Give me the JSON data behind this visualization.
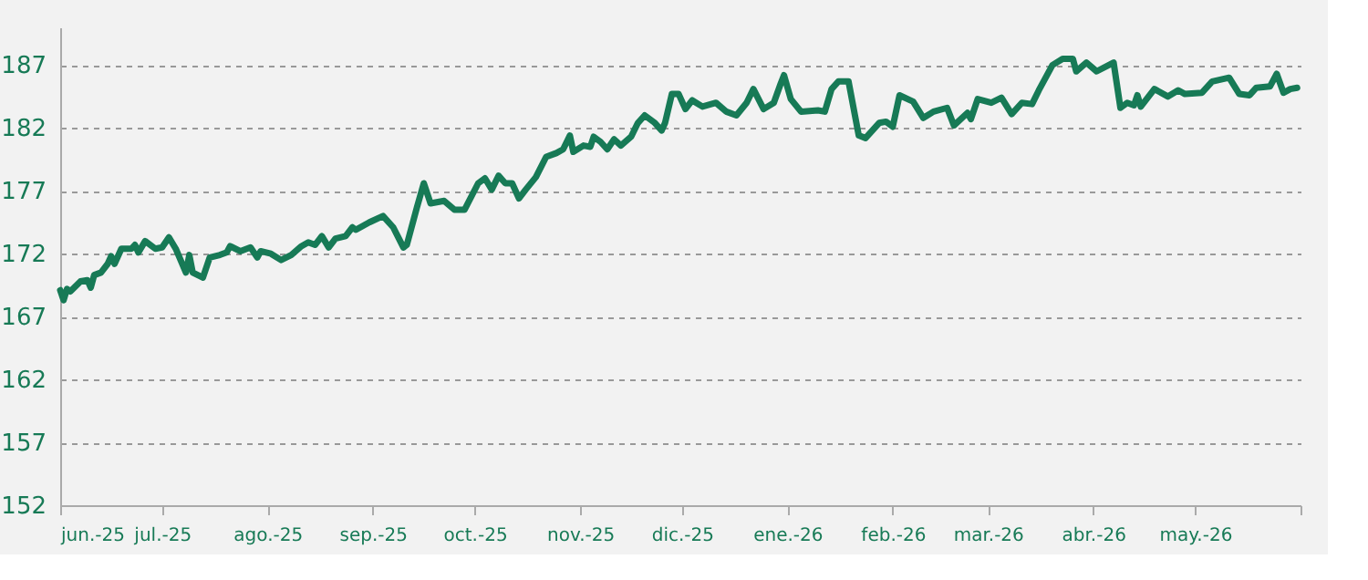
{
  "chart_data": {
    "type": "line",
    "xlim": [
      "2025-06-01",
      "2026-06-01"
    ],
    "ylim": [
      152,
      190
    ],
    "yticks": [
      152,
      157,
      162,
      167,
      172,
      177,
      182,
      187
    ],
    "xticks": [
      {
        "value": "2025-06-01",
        "label": "jun.-25"
      },
      {
        "value": "2025-07-01",
        "label": "jul.-25"
      },
      {
        "value": "2025-08-01",
        "label": "ago.-25"
      },
      {
        "value": "2025-09-01",
        "label": "sep.-25"
      },
      {
        "value": "2025-10-01",
        "label": "oct.-25"
      },
      {
        "value": "2025-11-01",
        "label": "nov.-25"
      },
      {
        "value": "2025-12-01",
        "label": "dic.-25"
      },
      {
        "value": "2026-01-01",
        "label": "ene.-26"
      },
      {
        "value": "2026-02-01",
        "label": "feb.-26"
      },
      {
        "value": "2026-03-01",
        "label": "mar.-26"
      },
      {
        "value": "2026-04-01",
        "label": "abr.-26"
      },
      {
        "value": "2026-05-01",
        "label": "may.-26"
      },
      {
        "value": "2026-06-01",
        "label": null
      }
    ],
    "grid": "y",
    "legend": false,
    "marker": "none",
    "line_style": "solid",
    "x": [
      "2025-06-01",
      "2025-06-02",
      "2025-06-03",
      "2025-06-04",
      "2025-06-07",
      "2025-06-09",
      "2025-06-10",
      "2025-06-11",
      "2025-06-13",
      "2025-06-15",
      "2025-06-16",
      "2025-06-17",
      "2025-06-19",
      "2025-06-22",
      "2025-06-23",
      "2025-06-24",
      "2025-06-26",
      "2025-06-29",
      "2025-07-01",
      "2025-07-03",
      "2025-07-05",
      "2025-07-08",
      "2025-07-09",
      "2025-07-10",
      "2025-07-13",
      "2025-07-15",
      "2025-07-18",
      "2025-07-20",
      "2025-07-21",
      "2025-07-24",
      "2025-07-27",
      "2025-07-29",
      "2025-07-30",
      "2025-08-02",
      "2025-08-05",
      "2025-08-08",
      "2025-08-11",
      "2025-08-13",
      "2025-08-15",
      "2025-08-17",
      "2025-08-19",
      "2025-08-21",
      "2025-08-24",
      "2025-08-26",
      "2025-08-27",
      "2025-08-31",
      "2025-09-04",
      "2025-09-07",
      "2025-09-10",
      "2025-09-11",
      "2025-09-14",
      "2025-09-16",
      "2025-09-18",
      "2025-09-22",
      "2025-09-25",
      "2025-09-28",
      "2025-10-02",
      "2025-10-04",
      "2025-10-06",
      "2025-10-08",
      "2025-10-10",
      "2025-10-12",
      "2025-10-14",
      "2025-10-16",
      "2025-10-19",
      "2025-10-22",
      "2025-10-25",
      "2025-10-27",
      "2025-10-29",
      "2025-10-30",
      "2025-11-02",
      "2025-11-04",
      "2025-11-05",
      "2025-11-07",
      "2025-11-09",
      "2025-11-11",
      "2025-11-13",
      "2025-11-16",
      "2025-11-18",
      "2025-11-20",
      "2025-11-23",
      "2025-11-25",
      "2025-11-26",
      "2025-11-28",
      "2025-11-30",
      "2025-12-02",
      "2025-12-04",
      "2025-12-07",
      "2025-12-11",
      "2025-12-14",
      "2025-12-17",
      "2025-12-20",
      "2025-12-22",
      "2025-12-25",
      "2025-12-28",
      "2025-12-30",
      "2025-12-31",
      "2026-01-02",
      "2026-01-05",
      "2026-01-10",
      "2026-01-12",
      "2026-01-14",
      "2026-01-16",
      "2026-01-19",
      "2026-01-22",
      "2026-01-24",
      "2026-01-26",
      "2026-01-28",
      "2026-01-30",
      "2026-02-01",
      "2026-02-03",
      "2026-02-07",
      "2026-02-10",
      "2026-02-13",
      "2026-02-17",
      "2026-02-19",
      "2026-02-23",
      "2026-02-24",
      "2026-02-26",
      "2026-03-02",
      "2026-03-05",
      "2026-03-08",
      "2026-03-11",
      "2026-03-14",
      "2026-03-16",
      "2026-03-20",
      "2026-03-23",
      "2026-03-26",
      "2026-03-27",
      "2026-03-30",
      "2026-04-02",
      "2026-04-07",
      "2026-04-09",
      "2026-04-11",
      "2026-04-13",
      "2026-04-14",
      "2026-04-15",
      "2026-04-19",
      "2026-04-23",
      "2026-04-26",
      "2026-04-28",
      "2026-05-03",
      "2026-05-06",
      "2026-05-11",
      "2026-05-14",
      "2026-05-17",
      "2026-05-19",
      "2026-05-23",
      "2026-05-25",
      "2026-05-27",
      "2026-05-29",
      "2026-05-31"
    ],
    "series": [
      {
        "color": "#177a56",
        "values": [
          169.1,
          168.3,
          169.2,
          169.0,
          169.8,
          169.9,
          169.3,
          170.3,
          170.5,
          171.2,
          171.8,
          171.2,
          172.4,
          172.4,
          172.7,
          172.1,
          173.0,
          172.4,
          172.5,
          173.3,
          172.4,
          170.5,
          171.9,
          170.5,
          170.1,
          171.7,
          171.9,
          172.1,
          172.6,
          172.2,
          172.5,
          171.7,
          172.2,
          172.0,
          171.5,
          171.9,
          172.6,
          172.9,
          172.7,
          173.4,
          172.5,
          173.2,
          173.4,
          174.1,
          173.9,
          174.5,
          175.0,
          174.1,
          172.5,
          172.7,
          175.7,
          177.6,
          176.0,
          176.2,
          175.5,
          175.5,
          177.6,
          178.0,
          177.1,
          178.2,
          177.6,
          177.6,
          176.4,
          177.1,
          178.1,
          179.7,
          180.0,
          180.3,
          181.4,
          180.1,
          180.6,
          180.5,
          181.3,
          180.9,
          180.3,
          181.1,
          180.6,
          181.3,
          182.4,
          183.0,
          182.4,
          181.8,
          182.4,
          184.7,
          184.7,
          183.5,
          184.2,
          183.7,
          184.0,
          183.3,
          183.0,
          184.0,
          185.1,
          183.5,
          184.0,
          185.5,
          186.2,
          184.3,
          183.3,
          183.4,
          183.3,
          185.1,
          185.7,
          185.7,
          181.4,
          181.2,
          181.8,
          182.4,
          182.5,
          182.1,
          184.6,
          184.1,
          182.8,
          183.3,
          183.6,
          182.2,
          183.2,
          182.7,
          184.3,
          184.0,
          184.4,
          183.1,
          184.0,
          183.9,
          185.0,
          187.0,
          187.5,
          187.5,
          186.5,
          187.2,
          186.5,
          187.2,
          183.6,
          184.0,
          183.8,
          184.6,
          183.7,
          185.1,
          184.5,
          185.0,
          184.7,
          184.8,
          185.7,
          186.0,
          184.7,
          184.6,
          185.2,
          185.3,
          186.3,
          184.8,
          185.1,
          185.2
        ]
      }
    ]
  }
}
